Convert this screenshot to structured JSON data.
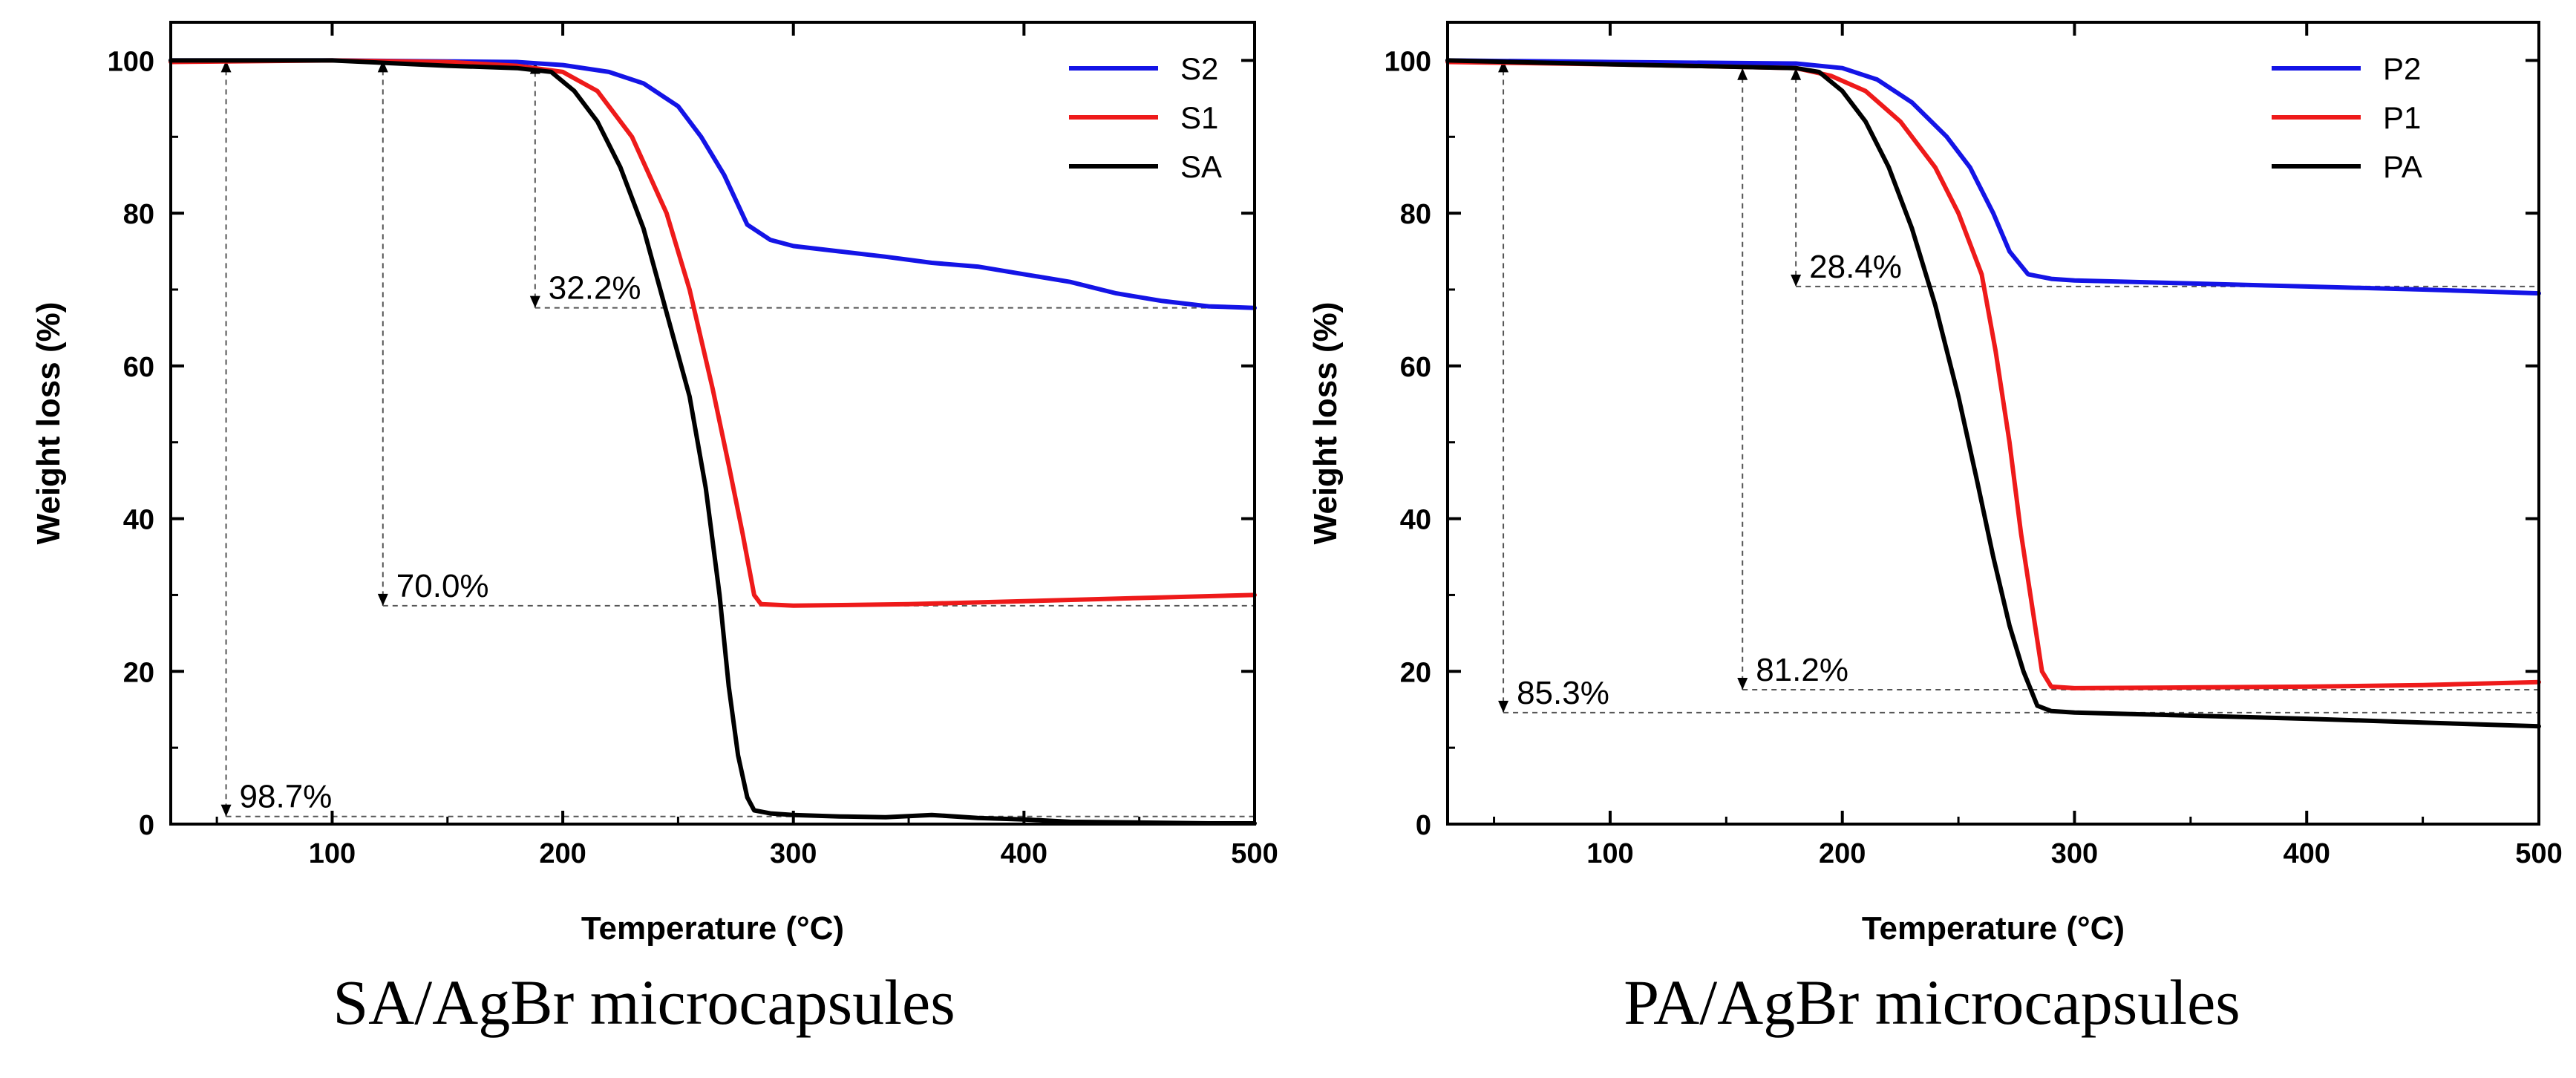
{
  "chart_data": [
    {
      "type": "line",
      "title": "SA/AgBr microcapsules",
      "xlabel": "Temperature (°C)",
      "ylabel": "Weight loss (%)",
      "xlim": [
        30,
        500
      ],
      "ylim": [
        0,
        105
      ],
      "xticks": [
        100,
        200,
        300,
        400,
        500
      ],
      "yticks": [
        0,
        20,
        40,
        60,
        80,
        100
      ],
      "legend": "top-right",
      "series": [
        {
          "name": "S2",
          "color": "#1414e6",
          "points": [
            [
              30,
              100
            ],
            [
              100,
              100
            ],
            [
              180,
              99.8
            ],
            [
              200,
              99.4
            ],
            [
              220,
              98.5
            ],
            [
              235,
              97
            ],
            [
              250,
              94
            ],
            [
              260,
              90
            ],
            [
              270,
              85
            ],
            [
              280,
              78.5
            ],
            [
              290,
              76.5
            ],
            [
              300,
              75.7
            ],
            [
              320,
              75
            ],
            [
              340,
              74.3
            ],
            [
              360,
              73.5
            ],
            [
              380,
              73
            ],
            [
              400,
              72
            ],
            [
              420,
              71
            ],
            [
              440,
              69.5
            ],
            [
              460,
              68.5
            ],
            [
              480,
              67.8
            ],
            [
              500,
              67.6
            ]
          ]
        },
        {
          "name": "S1",
          "color": "#ee1a1a",
          "points": [
            [
              30,
              99.8
            ],
            [
              100,
              100
            ],
            [
              150,
              99.8
            ],
            [
              180,
              99.3
            ],
            [
              200,
              98.5
            ],
            [
              215,
              96
            ],
            [
              230,
              90
            ],
            [
              245,
              80
            ],
            [
              255,
              70
            ],
            [
              265,
              57
            ],
            [
              272,
              47
            ],
            [
              278,
              38
            ],
            [
              283,
              30
            ],
            [
              286,
              28.8
            ],
            [
              300,
              28.6
            ],
            [
              350,
              28.8
            ],
            [
              400,
              29.2
            ],
            [
              450,
              29.6
            ],
            [
              500,
              30
            ]
          ]
        },
        {
          "name": "SA",
          "color": "#000000",
          "points": [
            [
              30,
              100
            ],
            [
              100,
              100
            ],
            [
              150,
              99.3
            ],
            [
              180,
              99
            ],
            [
              195,
              98.5
            ],
            [
              205,
              96
            ],
            [
              215,
              92
            ],
            [
              225,
              86
            ],
            [
              235,
              78
            ],
            [
              245,
              67
            ],
            [
              255,
              56
            ],
            [
              262,
              44
            ],
            [
              268,
              30
            ],
            [
              272,
              18
            ],
            [
              276,
              9
            ],
            [
              280,
              3.5
            ],
            [
              283,
              1.8
            ],
            [
              290,
              1.4
            ],
            [
              300,
              1.2
            ],
            [
              320,
              1
            ],
            [
              340,
              0.9
            ],
            [
              360,
              1.2
            ],
            [
              380,
              0.8
            ],
            [
              400,
              0.6
            ],
            [
              420,
              0.3
            ],
            [
              450,
              0.2
            ],
            [
              480,
              0.1
            ],
            [
              500,
              0.1
            ]
          ]
        }
      ],
      "annotations": [
        {
          "label": "32.2%",
          "x": 188,
          "y_top": 99.8,
          "y_bottom": 67.6
        },
        {
          "label": "70.0%",
          "x": 122,
          "y_top": 100,
          "y_bottom": 28.6
        },
        {
          "label": "98.7%",
          "x": 54,
          "y_top": 100,
          "y_bottom": 1
        }
      ]
    },
    {
      "type": "line",
      "title": "PA/AgBr microcapsules",
      "xlabel": "Temperature (°C)",
      "ylabel": "Weight loss (%)",
      "xlim": [
        30,
        500
      ],
      "ylim": [
        0,
        105
      ],
      "xticks": [
        100,
        200,
        300,
        400,
        500
      ],
      "yticks": [
        0,
        20,
        40,
        60,
        80,
        100
      ],
      "legend": "top-right",
      "series": [
        {
          "name": "P2",
          "color": "#1414e6",
          "points": [
            [
              30,
              100
            ],
            [
              100,
              99.8
            ],
            [
              180,
              99.6
            ],
            [
              200,
              99
            ],
            [
              215,
              97.5
            ],
            [
              230,
              94.5
            ],
            [
              245,
              90
            ],
            [
              255,
              86
            ],
            [
              265,
              80
            ],
            [
              272,
              75
            ],
            [
              280,
              72
            ],
            [
              290,
              71.4
            ],
            [
              300,
              71.2
            ],
            [
              350,
              70.8
            ],
            [
              400,
              70.4
            ],
            [
              450,
              70
            ],
            [
              500,
              69.5
            ]
          ]
        },
        {
          "name": "P1",
          "color": "#ee1a1a",
          "points": [
            [
              30,
              99.8
            ],
            [
              100,
              99.5
            ],
            [
              150,
              99.2
            ],
            [
              180,
              99
            ],
            [
              195,
              98
            ],
            [
              210,
              96
            ],
            [
              225,
              92
            ],
            [
              240,
              86
            ],
            [
              250,
              80
            ],
            [
              260,
              72
            ],
            [
              266,
              62
            ],
            [
              272,
              50
            ],
            [
              277,
              38
            ],
            [
              282,
              28
            ],
            [
              286,
              20
            ],
            [
              290,
              18
            ],
            [
              300,
              17.8
            ],
            [
              350,
              17.9
            ],
            [
              400,
              18
            ],
            [
              450,
              18.2
            ],
            [
              500,
              18.6
            ]
          ]
        },
        {
          "name": "PA",
          "color": "#000000",
          "points": [
            [
              30,
              100
            ],
            [
              100,
              99.5
            ],
            [
              150,
              99.2
            ],
            [
              180,
              99
            ],
            [
              190,
              98.5
            ],
            [
              200,
              96
            ],
            [
              210,
              92
            ],
            [
              220,
              86
            ],
            [
              230,
              78
            ],
            [
              240,
              68
            ],
            [
              250,
              56
            ],
            [
              258,
              45
            ],
            [
              265,
              35
            ],
            [
              272,
              26
            ],
            [
              278,
              20
            ],
            [
              284,
              15.5
            ],
            [
              290,
              14.8
            ],
            [
              300,
              14.6
            ],
            [
              350,
              14.2
            ],
            [
              400,
              13.8
            ],
            [
              450,
              13.3
            ],
            [
              500,
              12.8
            ]
          ]
        }
      ],
      "annotations": [
        {
          "label": "28.4%",
          "x": 180,
          "y_top": 99,
          "y_bottom": 70.4
        },
        {
          "label": "81.2%",
          "x": 157,
          "y_top": 99,
          "y_bottom": 17.6
        },
        {
          "label": "85.3%",
          "x": 54,
          "y_top": 100,
          "y_bottom": 14.6
        }
      ]
    }
  ]
}
